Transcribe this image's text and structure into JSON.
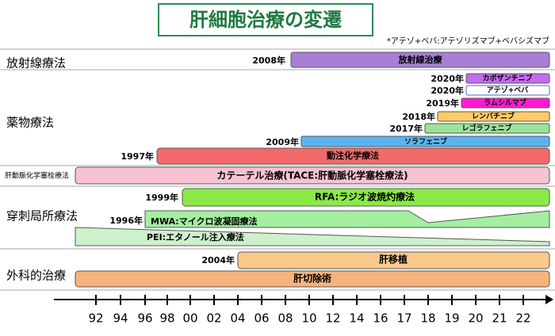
{
  "header": {
    "title": "肝細胞治療の変遷",
    "note": "*アテゾ+ベバ:アテゾリズマブ+ベバシズマブ"
  },
  "sections": [
    {
      "label": "放射線療法"
    },
    {
      "label": "薬物療法"
    },
    {
      "label": "肝動脈化学塞栓療法"
    },
    {
      "label": "穿刺局所療法"
    },
    {
      "label": "外科的治療"
    }
  ],
  "bars": [
    {
      "label": "放射線治療",
      "year": "2008年"
    },
    {
      "label": "カボザンチニブ",
      "year": "2020年"
    },
    {
      "label": "アテゾ+ベバ",
      "year": "2020年"
    },
    {
      "label": "ラムシルマブ",
      "year": "2019年"
    },
    {
      "label": "レンバチニブ",
      "year": "2018年"
    },
    {
      "label": "レゴラフェニブ",
      "year": "2017年"
    },
    {
      "label": "ソラフェニブ",
      "year": "2009年"
    },
    {
      "label": "動注化学療法",
      "year": "1997年"
    },
    {
      "label": "カテーテル治療(TACE:肝動脈化学塞栓療法)"
    },
    {
      "label": "RFA:ラジオ波焼灼療法",
      "year": "1999年"
    },
    {
      "label": "MWA:マイクロ波凝固療法",
      "year": "1996年"
    },
    {
      "label": "PEI:エタノール注入療法"
    },
    {
      "label": "肝移植",
      "year": "2004年"
    },
    {
      "label": "肝切除術"
    }
  ],
  "axis": {
    "ticks": [
      "92",
      "94",
      "96",
      "98",
      "00",
      "02",
      "04",
      "06",
      "08",
      "10",
      "12",
      "14",
      "16",
      "17",
      "18",
      "19",
      "20",
      "21",
      "22"
    ]
  }
}
